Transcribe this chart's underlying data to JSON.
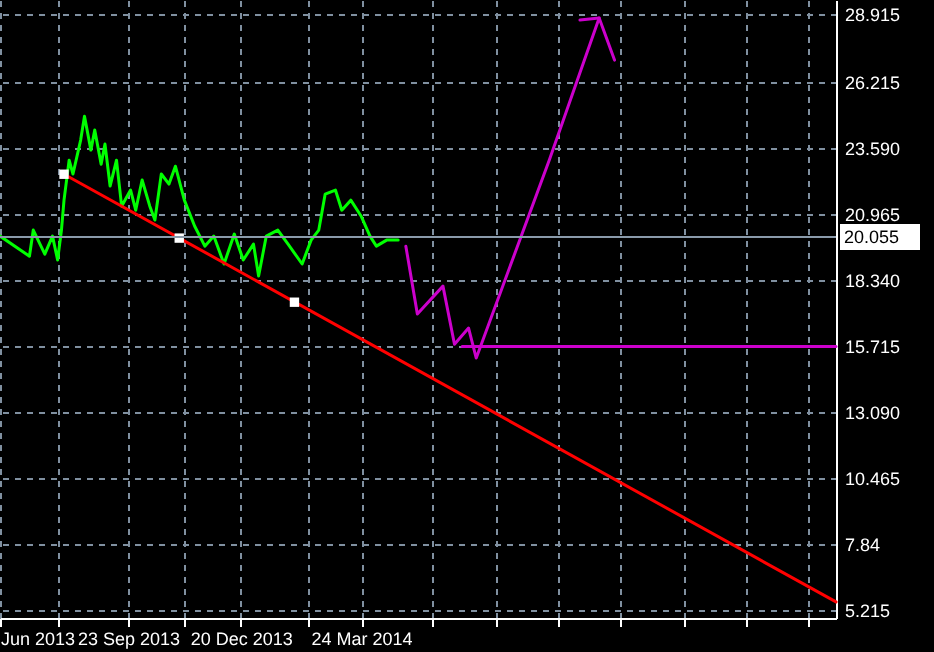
{
  "chart_data": {
    "type": "line",
    "xlim": [
      "2013-06-15",
      "2015-03-30"
    ],
    "ylim": [
      4.9,
      29.48
    ],
    "xticks": [
      {
        "value": "2013-06-15",
        "label": "Jun 2013"
      },
      {
        "value": "2013-07-30",
        "label": null
      },
      {
        "value": "2013-09-23",
        "label": "23 Sep 2013"
      },
      {
        "value": "2013-11-05",
        "label": null
      },
      {
        "value": "2013-12-20",
        "label": "20 Dec 2013"
      },
      {
        "value": "2014-02-10",
        "label": null
      },
      {
        "value": "2014-03-24",
        "label": "24 Mar 2014"
      },
      {
        "value": "2014-05-19",
        "label": null
      },
      {
        "value": "2014-07-07",
        "label": null
      },
      {
        "value": "2014-08-25",
        "label": null
      },
      {
        "value": "2014-10-13",
        "label": null
      },
      {
        "value": "2014-12-01",
        "label": null
      },
      {
        "value": "2015-01-19",
        "label": null
      },
      {
        "value": "2015-03-08",
        "label": null
      }
    ],
    "yticks": [
      5.215,
      7.84,
      {
        "value": 10.465,
        "label": "10.465"
      },
      {
        "value": 13.09,
        "label": "13.090"
      },
      15.715,
      {
        "value": 18.34,
        "label": "18.340"
      },
      20.965,
      {
        "value": 23.59,
        "label": "23.590"
      },
      26.215,
      28.915
    ],
    "grid": true,
    "ref_lines": [
      {
        "axis": "y",
        "value": 20.055,
        "label": "20.055",
        "color": "#8a9aaa"
      }
    ],
    "series": [
      {
        "color": "#00ff00",
        "x": [
          "2013-06-15",
          "2013-07-08",
          "2013-07-11",
          "2013-07-20",
          "2013-07-26",
          "2013-07-30",
          "2013-08-02",
          "2013-08-04",
          "2013-08-08",
          "2013-08-11",
          "2013-08-17",
          "2013-08-20",
          "2013-08-25",
          "2013-08-28",
          "2013-09-02",
          "2013-09-05",
          "2013-09-09",
          "2013-09-14",
          "2013-09-18",
          "2013-09-25",
          "2013-09-29",
          "2013-10-04",
          "2013-10-10",
          "2013-10-14",
          "2013-10-19",
          "2013-10-25",
          "2013-10-30",
          "2013-11-06",
          "2013-11-14",
          "2013-11-22",
          "2013-11-29",
          "2013-12-07",
          "2013-12-15",
          "2013-12-22",
          "2013-12-30",
          "2014-01-03",
          "2014-01-09",
          "2014-01-18",
          "2014-01-26",
          "2014-02-06",
          "2014-02-13",
          "2014-02-19",
          "2014-02-24",
          "2014-03-04",
          "2014-03-09",
          "2014-03-16",
          "2014-03-24",
          "2014-03-31",
          "2014-04-05",
          "2014-04-13",
          "2014-04-22"
        ],
        "values": [
          20.09,
          19.29,
          20.33,
          19.37,
          20.09,
          19.14,
          20.33,
          21.52,
          23.11,
          22.56,
          23.91,
          24.86,
          23.51,
          24.31,
          22.95,
          23.75,
          22.08,
          23.11,
          21.28,
          21.92,
          21.12,
          22.32,
          21.28,
          20.73,
          22.56,
          22.16,
          22.87,
          21.52,
          20.49,
          19.69,
          20.09,
          18.98,
          20.17,
          19.14,
          19.77,
          18.5,
          20.09,
          20.33,
          19.77,
          18.98,
          19.93,
          20.33,
          21.76,
          21.92,
          21.12,
          21.52,
          20.89,
          20.09,
          19.69,
          19.93,
          19.93
        ]
      },
      {
        "color": "#ff0000",
        "x": [
          "2013-08-04",
          "2015-03-30"
        ],
        "values": [
          22.55,
          5.54
        ]
      },
      {
        "type": "scatter",
        "marker": "square",
        "color": "#ffffff",
        "x": [
          "2013-08-04",
          "2013-11-02",
          "2014-01-31"
        ],
        "values": [
          22.55,
          20.01,
          17.46
        ]
      },
      {
        "color": "#cc00cc",
        "x": [
          "2014-04-28",
          "2014-05-07",
          "2014-05-27",
          "2014-06-05",
          "2014-06-16",
          "2014-06-22",
          "2014-08-18",
          "2014-09-26",
          "2014-10-08"
        ],
        "values": [
          19.69,
          16.99,
          18.1,
          15.79,
          16.43,
          15.24,
          23.11,
          28.76,
          27.09
        ]
      },
      {
        "color": "#cc00cc",
        "x": [
          "2014-09-11",
          "2014-09-26"
        ],
        "values": [
          28.68,
          28.76
        ]
      },
      {
        "color": "#cc00cc",
        "x": [
          "2014-06-11",
          "2015-03-30"
        ],
        "values": [
          15.7,
          15.7
        ]
      }
    ]
  }
}
